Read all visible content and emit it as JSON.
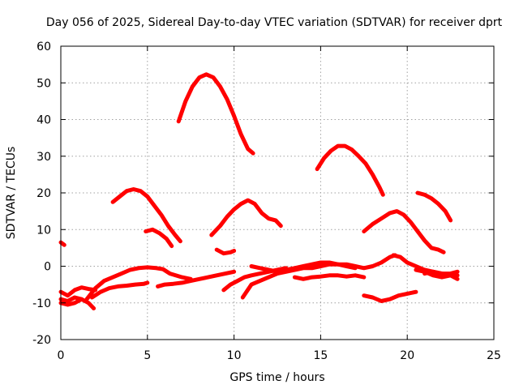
{
  "chart_data": {
    "type": "line",
    "title": "Day 056 of 2025, Sidereal Day-to-day VTEC variation (SDTVAR) for receiver dprt",
    "xlabel": "GPS time / hours",
    "ylabel": "SDTVAR / TECUs",
    "xlim": [
      0,
      25
    ],
    "ylim": [
      -20,
      60
    ],
    "xticks": [
      0,
      5,
      10,
      15,
      20,
      25
    ],
    "yticks": [
      -20,
      -10,
      0,
      10,
      20,
      30,
      40,
      50,
      60
    ],
    "grid": true,
    "color": "#ff0000",
    "series": [
      {
        "name": "arc-peak-52",
        "x": [
          6.8,
          7.2,
          7.6,
          8.0,
          8.4,
          8.8,
          9.2,
          9.6,
          10.0,
          10.4,
          10.8,
          11.1
        ],
        "y": [
          39.5,
          45,
          49,
          51.5,
          52.3,
          51.5,
          49,
          45.5,
          41,
          36,
          32,
          30.8
        ]
      },
      {
        "name": "arc-peak-33",
        "x": [
          14.8,
          15.2,
          15.6,
          16.0,
          16.4,
          16.8,
          17.2,
          17.6,
          18.0,
          18.4,
          18.6
        ],
        "y": [
          26.5,
          29.5,
          31.5,
          32.8,
          32.8,
          31.8,
          30,
          28,
          25,
          21.5,
          19.5
        ]
      },
      {
        "name": "arc-peak-21",
        "x": [
          3.0,
          3.4,
          3.8,
          4.2,
          4.6,
          5.0,
          5.4,
          5.8,
          6.2,
          6.6,
          6.9
        ],
        "y": [
          17.5,
          19,
          20.5,
          21,
          20.5,
          19,
          16.5,
          14,
          11,
          8.5,
          6.8
        ]
      },
      {
        "name": "arc-mid-18",
        "x": [
          8.7,
          9.2,
          9.6,
          10.0,
          10.4,
          10.8,
          11.2,
          11.6,
          12.0,
          12.4,
          12.7
        ],
        "y": [
          8.5,
          11,
          13.5,
          15.5,
          17,
          18,
          17,
          14.5,
          13,
          12.5,
          11
        ]
      },
      {
        "name": "arc-peak-15",
        "x": [
          17.5,
          18.0,
          18.5,
          19.0,
          19.4,
          19.8,
          20.2,
          20.6,
          21.0,
          21.4,
          21.8,
          22.1
        ],
        "y": [
          9.5,
          11.5,
          13,
          14.5,
          15,
          14,
          12,
          9.5,
          7,
          5,
          4.5,
          3.8
        ]
      },
      {
        "name": "arc-late-20",
        "x": [
          20.6,
          21.0,
          21.4,
          21.8,
          22.2,
          22.5
        ],
        "y": [
          20,
          19.5,
          18.5,
          17,
          15,
          12.5
        ]
      },
      {
        "name": "arc-small-10",
        "x": [
          4.9,
          5.3,
          5.7,
          6.1,
          6.4
        ],
        "y": [
          9.5,
          10,
          9,
          7.5,
          5.5
        ]
      },
      {
        "name": "dot-start-6",
        "x": [
          0.0,
          0.2
        ],
        "y": [
          6.5,
          5.8
        ]
      },
      {
        "name": "blip-4",
        "x": [
          9.0,
          9.4,
          9.8,
          10.0
        ],
        "y": [
          4.5,
          3.5,
          3.8,
          4.2
        ]
      },
      {
        "name": "low-rising-0",
        "x": [
          1.5,
          2.0,
          2.5,
          3.0,
          3.5,
          4.0,
          4.5,
          5.0,
          5.5,
          5.9,
          6.3,
          7.0,
          7.5
        ],
        "y": [
          -9,
          -6,
          -4,
          -3,
          -2,
          -1,
          -0.5,
          -0.3,
          -0.5,
          -0.8,
          -2,
          -3,
          -3.5
        ]
      },
      {
        "name": "low-mid-5",
        "x": [
          1.8,
          2.3,
          2.8,
          3.3,
          3.8,
          4.3,
          4.8,
          5.0
        ],
        "y": [
          -8.5,
          -7,
          -6,
          -5.5,
          -5.3,
          -5,
          -4.8,
          -4.5
        ]
      },
      {
        "name": "low-start-a",
        "x": [
          0.0,
          0.4,
          0.8,
          1.2,
          1.6,
          2.0
        ],
        "y": [
          -7,
          -8,
          -6.5,
          -5.8,
          -6.2,
          -6.5
        ]
      },
      {
        "name": "low-start-b",
        "x": [
          0.0,
          0.4,
          0.8,
          1.2,
          1.6,
          1.9
        ],
        "y": [
          -9,
          -9.5,
          -8.5,
          -9,
          -10,
          -11.5
        ]
      },
      {
        "name": "low-start-c",
        "x": [
          0.0,
          0.4,
          0.8,
          1.2
        ],
        "y": [
          -10,
          -10.5,
          -10,
          -9
        ]
      },
      {
        "name": "low-flat-a",
        "x": [
          5.6,
          6.0,
          6.5,
          7.0,
          7.5,
          8.0,
          8.5,
          9.0,
          9.5,
          10.0
        ],
        "y": [
          -5.5,
          -5,
          -4.8,
          -4.5,
          -4,
          -3.5,
          -3,
          -2.5,
          -2,
          -1.5
        ]
      },
      {
        "name": "low-flat-b",
        "x": [
          9.4,
          9.8,
          10.2,
          10.6,
          11.0,
          11.5,
          12.0,
          12.5,
          13.0
        ],
        "y": [
          -6.5,
          -5,
          -4,
          -3,
          -2.5,
          -2,
          -1.5,
          -1,
          -0.5
        ]
      },
      {
        "name": "low-flat-c",
        "x": [
          10.5,
          11.0,
          11.5,
          12.0,
          12.5,
          13.0,
          13.5,
          14.0,
          14.5,
          15.0,
          15.5,
          16.0,
          16.5,
          17.0
        ],
        "y": [
          -8.5,
          -5,
          -4,
          -3,
          -2,
          -1.5,
          -1,
          -0.5,
          -0.5,
          0,
          0.5,
          0.5,
          0,
          -0.5
        ]
      },
      {
        "name": "low-flat-d",
        "x": [
          11.0,
          11.5,
          12.0,
          12.5,
          13.0,
          13.5,
          14.0,
          14.5,
          15.0,
          15.5,
          16.0,
          16.5,
          17.0,
          17.5,
          18.0,
          18.5,
          19.0,
          19.3
        ],
        "y": [
          0,
          -0.5,
          -1,
          -1.5,
          -1,
          -0.5,
          0,
          0.5,
          1,
          1,
          0.5,
          0.5,
          0,
          -0.5,
          0,
          1,
          2.5,
          3
        ]
      },
      {
        "name": "low-flat-e",
        "x": [
          13.5,
          14.0,
          14.5,
          15.0,
          15.5,
          16.0,
          16.5,
          17.0,
          17.5
        ],
        "y": [
          -3,
          -3.5,
          -3,
          -2.8,
          -2.5,
          -2.5,
          -2.8,
          -2.5,
          -3
        ]
      },
      {
        "name": "low-dip-9",
        "x": [
          17.5,
          18.0,
          18.5,
          19.0,
          19.5,
          20.0,
          20.5
        ],
        "y": [
          -8,
          -8.5,
          -9.5,
          -9,
          -8,
          -7.5,
          -7
        ]
      },
      {
        "name": "low-tail-a",
        "x": [
          19.2,
          19.6,
          20.0,
          20.5,
          21.0,
          21.5,
          22.0,
          22.5,
          22.9
        ],
        "y": [
          3,
          2.5,
          1,
          0,
          -1,
          -1.5,
          -2,
          -2.5,
          -2.5
        ]
      },
      {
        "name": "low-tail-b",
        "x": [
          20.5,
          21.0,
          21.5,
          22.0,
          22.5,
          22.9
        ],
        "y": [
          -1,
          -1.5,
          -2.5,
          -3,
          -2.5,
          -3.5
        ]
      },
      {
        "name": "low-tail-c",
        "x": [
          21.0,
          21.5,
          22.0,
          22.5,
          22.9
        ],
        "y": [
          -2,
          -1.5,
          -2,
          -2,
          -1.5
        ]
      }
    ]
  }
}
